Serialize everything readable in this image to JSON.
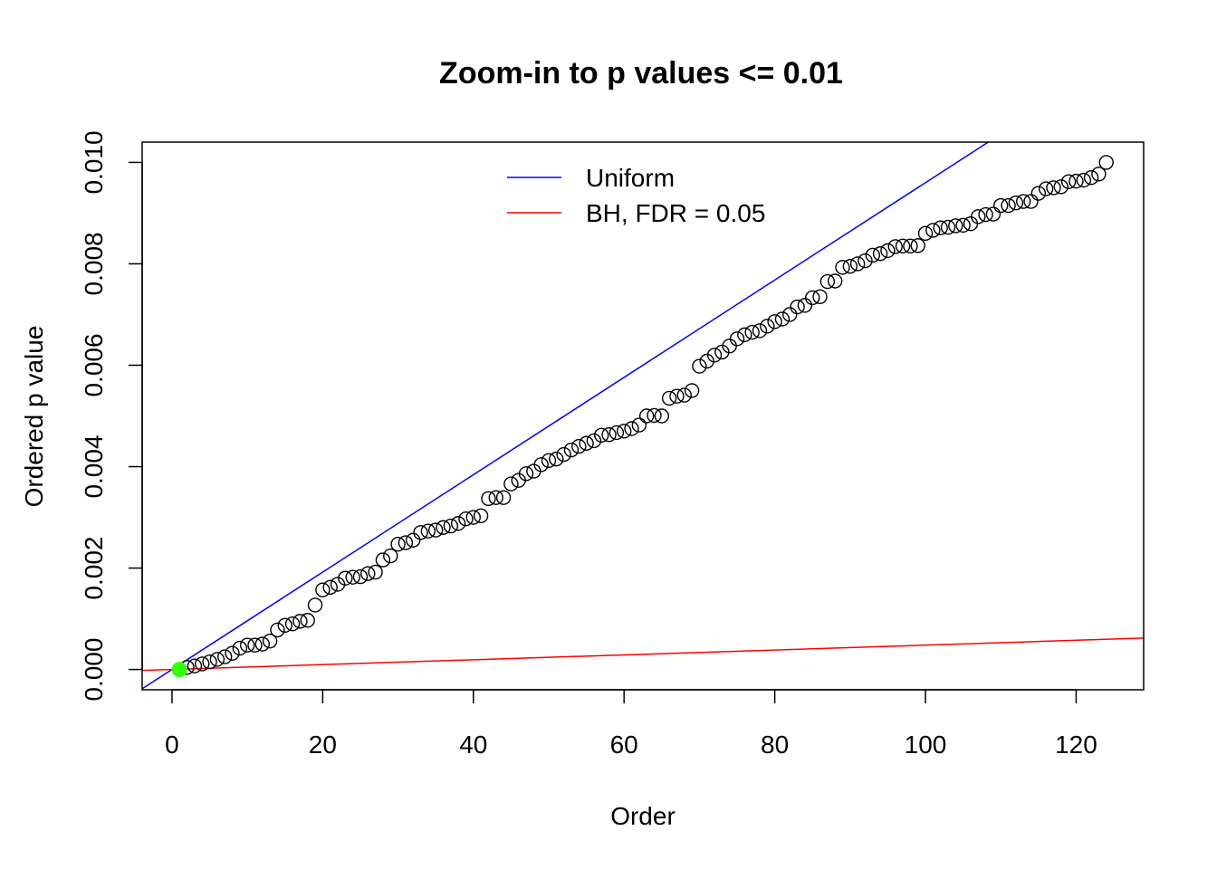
{
  "chart_data": {
    "type": "scatter",
    "title": "Zoom-in to p values <= 0.01",
    "xlabel": "Order",
    "ylabel": "Ordered p value",
    "xlim": [
      -3.96,
      128.96
    ],
    "ylim": [
      -0.0004,
      0.0104
    ],
    "x_ticks": [
      0,
      20,
      40,
      60,
      80,
      100,
      120
    ],
    "x_tick_labels": [
      "0",
      "20",
      "40",
      "60",
      "80",
      "100",
      "120"
    ],
    "y_ticks": [
      0,
      0.002,
      0.004,
      0.006,
      0.008,
      0.01
    ],
    "y_tick_labels": [
      "0.000",
      "0.002",
      "0.004",
      "0.006",
      "0.008",
      "0.010"
    ],
    "grid": false,
    "legend_position": "top-center",
    "series": [
      {
        "kind": "points",
        "marker": "open-circle",
        "color": "#000000",
        "x": [
          1,
          2,
          3,
          4,
          5,
          6,
          7,
          8,
          9,
          10,
          11,
          12,
          13,
          14,
          15,
          16,
          17,
          18,
          19,
          20,
          21,
          22,
          23,
          24,
          25,
          26,
          27,
          28,
          29,
          30,
          31,
          32,
          33,
          34,
          35,
          36,
          37,
          38,
          39,
          40,
          41,
          42,
          43,
          44,
          45,
          46,
          47,
          48,
          49,
          50,
          51,
          52,
          53,
          54,
          55,
          56,
          57,
          58,
          59,
          60,
          61,
          62,
          63,
          64,
          65,
          66,
          67,
          68,
          69,
          70,
          71,
          72,
          73,
          74,
          75,
          76,
          77,
          78,
          79,
          80,
          81,
          82,
          83,
          84,
          85,
          86,
          87,
          88,
          89,
          90,
          91,
          92,
          93,
          94,
          95,
          96,
          97,
          98,
          99,
          100,
          101,
          102,
          103,
          104,
          105,
          106,
          107,
          108,
          109,
          110,
          111,
          112,
          113,
          114,
          115,
          116,
          117,
          118,
          119,
          120,
          121,
          122,
          123,
          124
        ],
        "y": [
          0.0,
          4e-05,
          7e-05,
          0.00011,
          0.00015,
          0.0002,
          0.00025,
          0.00032,
          0.00042,
          0.00048,
          0.00048,
          0.0005,
          0.00056,
          0.00078,
          0.00087,
          0.0009,
          0.00095,
          0.00097,
          0.00127,
          0.00157,
          0.00162,
          0.00168,
          0.0018,
          0.00182,
          0.00183,
          0.00189,
          0.00192,
          0.00216,
          0.00224,
          0.00247,
          0.0025,
          0.00255,
          0.0027,
          0.00273,
          0.00275,
          0.0028,
          0.00283,
          0.00288,
          0.00297,
          0.003,
          0.00303,
          0.00337,
          0.00339,
          0.00339,
          0.00366,
          0.00373,
          0.00386,
          0.00391,
          0.00404,
          0.00412,
          0.00415,
          0.00424,
          0.00433,
          0.0044,
          0.00446,
          0.00451,
          0.00462,
          0.00463,
          0.00467,
          0.0047,
          0.00475,
          0.00482,
          0.005,
          0.00501,
          0.005,
          0.00535,
          0.00539,
          0.00541,
          0.0055,
          0.00598,
          0.00608,
          0.0062,
          0.00626,
          0.00638,
          0.00652,
          0.0066,
          0.00665,
          0.00668,
          0.00677,
          0.00686,
          0.00691,
          0.007,
          0.00715,
          0.00718,
          0.00733,
          0.00735,
          0.00765,
          0.00766,
          0.00793,
          0.00795,
          0.008,
          0.00806,
          0.00817,
          0.0082,
          0.00826,
          0.00834,
          0.00835,
          0.00835,
          0.00836,
          0.0086,
          0.00866,
          0.00871,
          0.00872,
          0.00875,
          0.00876,
          0.00879,
          0.00893,
          0.00897,
          0.00898,
          0.00915,
          0.00915,
          0.0092,
          0.00923,
          0.00923,
          0.00939,
          0.00948,
          0.0095,
          0.00952,
          0.00962,
          0.00963,
          0.00965,
          0.0097,
          0.00977,
          0.01
        ]
      },
      {
        "kind": "highlight-point",
        "color": "#33ff00",
        "x": [
          1
        ],
        "y": [
          0.0
        ]
      },
      {
        "kind": "abline",
        "name": "Uniform",
        "color": "#0000ff",
        "intercept": 0,
        "slope": 9.6e-05
      },
      {
        "kind": "abline",
        "name": "BH, FDR = 0.05",
        "color": "#ff0000",
        "intercept": 0,
        "slope": 4.8e-06
      }
    ]
  }
}
